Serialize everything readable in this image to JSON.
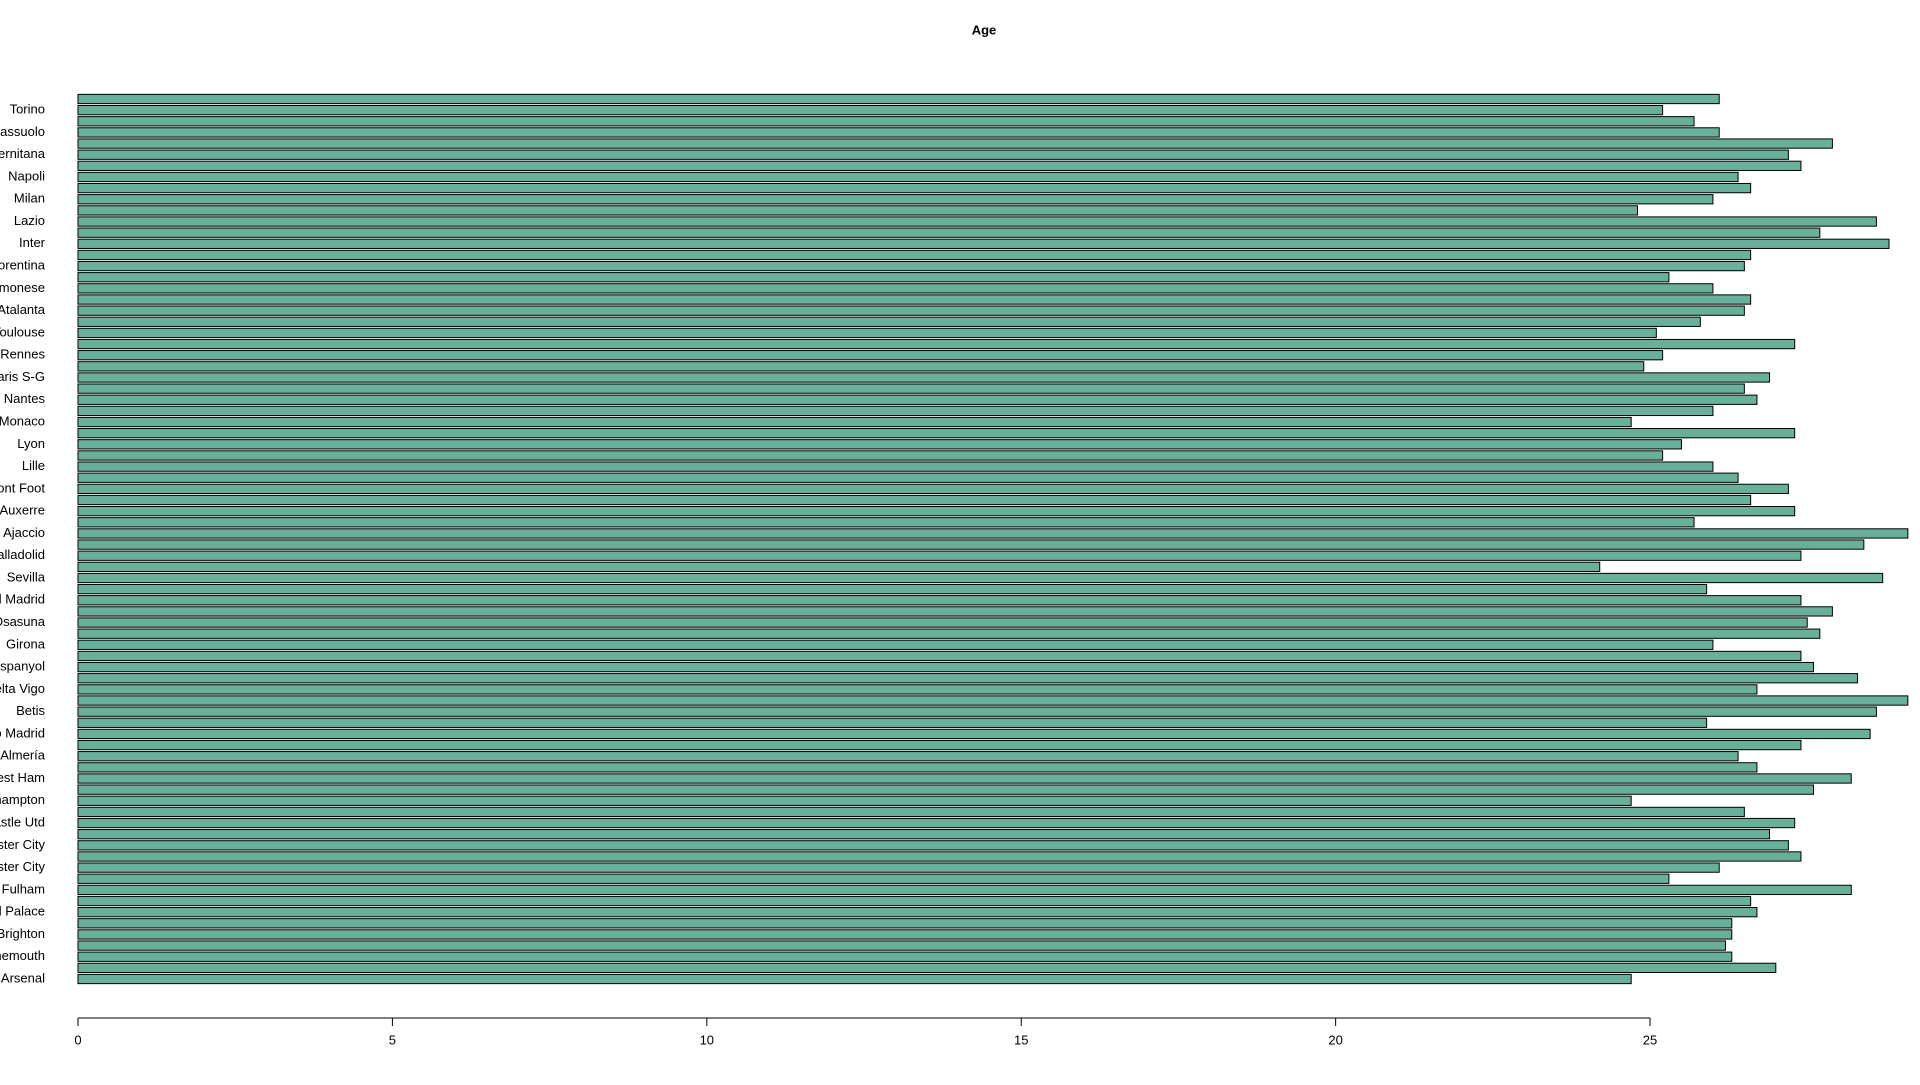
{
  "chart_data": {
    "type": "barh",
    "title": "Age",
    "categories": [
      "Arsenal",
      null,
      "Bournemouth",
      null,
      "Brighton",
      null,
      "Crystal Palace",
      null,
      "Fulham",
      null,
      "Leicester City",
      null,
      "Manchester City",
      null,
      "Newcastle Utd",
      null,
      "Southampton",
      null,
      "West Ham",
      null,
      "Almería",
      null,
      "Atlético Madrid",
      null,
      "Betis",
      null,
      "Celta Vigo",
      null,
      "Espanyol",
      null,
      "Girona",
      null,
      "Osasuna",
      null,
      "Real Madrid",
      null,
      "Sevilla",
      null,
      "Valladolid",
      null,
      "Ajaccio",
      null,
      "Auxerre",
      null,
      "Clermont Foot",
      null,
      "Lille",
      null,
      "Lyon",
      null,
      "Monaco",
      null,
      "Nantes",
      null,
      "Paris S-G",
      null,
      "Rennes",
      null,
      "Toulouse",
      null,
      "Atalanta",
      null,
      "Cremonese",
      null,
      "Fiorentina",
      null,
      "Inter",
      null,
      "Lazio",
      null,
      "Milan",
      null,
      "Napoli",
      null,
      "Salernitana",
      null,
      "Sassuolo",
      null,
      "Torino",
      null
    ],
    "values": [
      24.7,
      27.0,
      26.3,
      26.2,
      26.3,
      26.3,
      26.7,
      26.6,
      28.2,
      25.3,
      26.1,
      27.4,
      27.2,
      26.9,
      27.3,
      26.5,
      24.7,
      27.6,
      28.2,
      26.7,
      26.4,
      27.4,
      28.5,
      25.9,
      28.6,
      29.1,
      26.7,
      28.3,
      27.6,
      27.4,
      26.0,
      27.7,
      27.5,
      27.9,
      27.4,
      25.9,
      28.7,
      24.2,
      27.4,
      28.4,
      29.1,
      25.7,
      27.3,
      26.6,
      27.2,
      26.4,
      26.0,
      25.2,
      25.5,
      27.3,
      24.7,
      26.0,
      26.7,
      26.5,
      26.9,
      24.9,
      25.2,
      27.3,
      25.1,
      25.8,
      26.5,
      26.6,
      26.0,
      25.3,
      26.5,
      26.6,
      28.8,
      27.7,
      28.6,
      24.8,
      26.0,
      26.6,
      26.4,
      27.4,
      27.2,
      27.9,
      26.1,
      25.7,
      25.2,
      26.1
    ],
    "color": "#69b09b",
    "xlim": [
      0,
      29.15
    ],
    "xticks": [
      0,
      5,
      10,
      15,
      20,
      25
    ]
  }
}
